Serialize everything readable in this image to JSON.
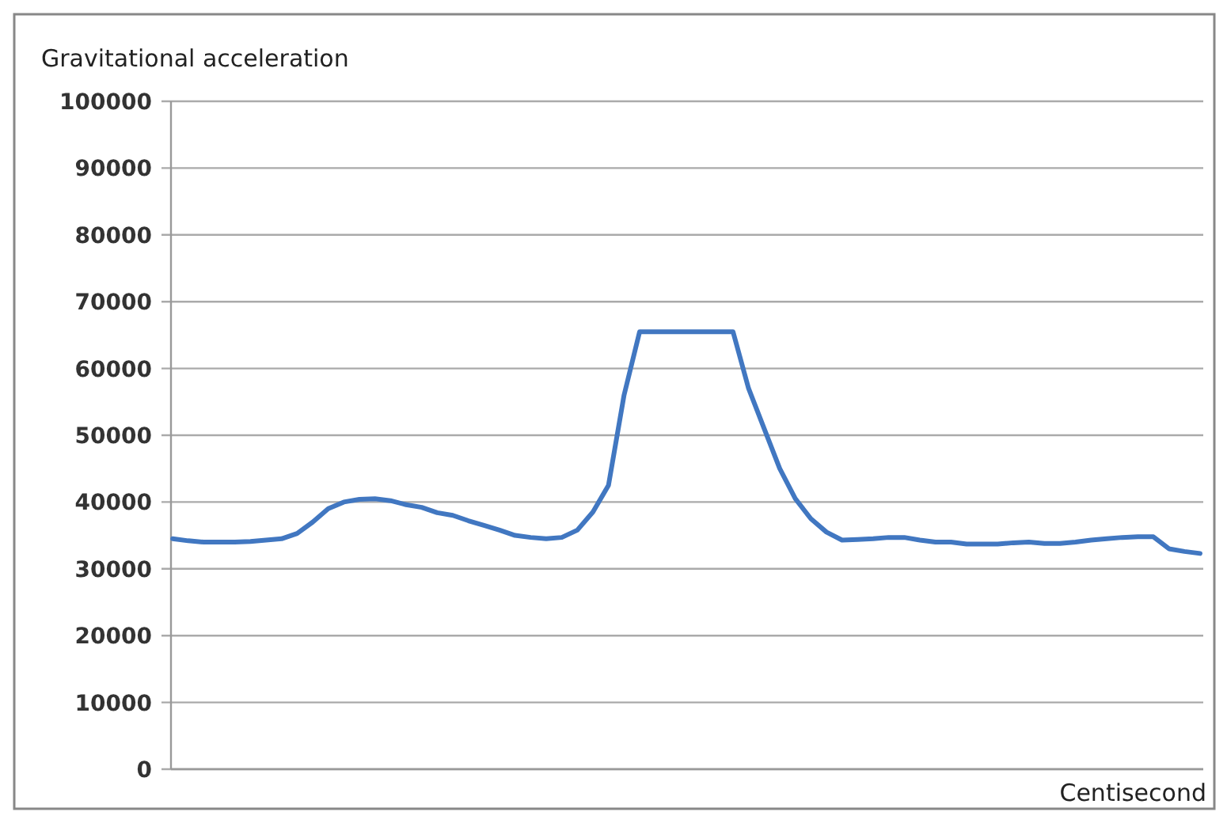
{
  "chart_data": {
    "type": "line",
    "title": "Gravitational acceleration",
    "xlabel": "Centisecond",
    "categories": [
      null,
      null,
      null,
      null,
      null,
      null,
      null,
      null,
      null,
      null,
      null,
      null,
      null,
      null,
      null,
      null,
      null,
      null,
      null,
      null,
      null,
      null,
      null,
      null,
      null,
      null,
      null,
      null,
      null,
      null,
      null,
      null,
      null,
      null,
      null,
      null,
      null,
      null,
      null,
      null,
      null,
      null,
      null,
      null,
      null,
      null,
      null,
      null,
      null,
      null,
      null,
      null,
      null,
      null,
      null,
      null,
      null,
      null,
      null,
      null,
      null,
      null,
      null,
      null,
      null,
      null,
      null
    ],
    "series": [
      {
        "color": "#4177c1",
        "values": [
          34500,
          34200,
          34000,
          34000,
          34000,
          34100,
          34300,
          34500,
          35300,
          37000,
          39000,
          40000,
          40400,
          40500,
          40200,
          39600,
          39200,
          38400,
          38000,
          37200,
          36500,
          35800,
          35000,
          34700,
          34500,
          34700,
          35800,
          38500,
          42500,
          56000,
          65500,
          65500,
          65500,
          65500,
          65500,
          65500,
          65500,
          57000,
          51000,
          45000,
          40500,
          37500,
          35500,
          34300,
          34400,
          34500,
          34700,
          34700,
          34300,
          34000,
          34000,
          33700,
          33700,
          33700,
          33900,
          34000,
          33800,
          33800,
          34000,
          34300,
          34500,
          34700,
          34800,
          34800,
          33000,
          32600,
          32300
        ]
      }
    ],
    "ylim": [
      0,
      100000
    ],
    "yticks": [
      0,
      10000,
      20000,
      30000,
      40000,
      50000,
      60000,
      70000,
      80000,
      90000,
      100000
    ],
    "grid": "y",
    "tick_labels": "y",
    "marker": "none",
    "line_style": "solid"
  }
}
